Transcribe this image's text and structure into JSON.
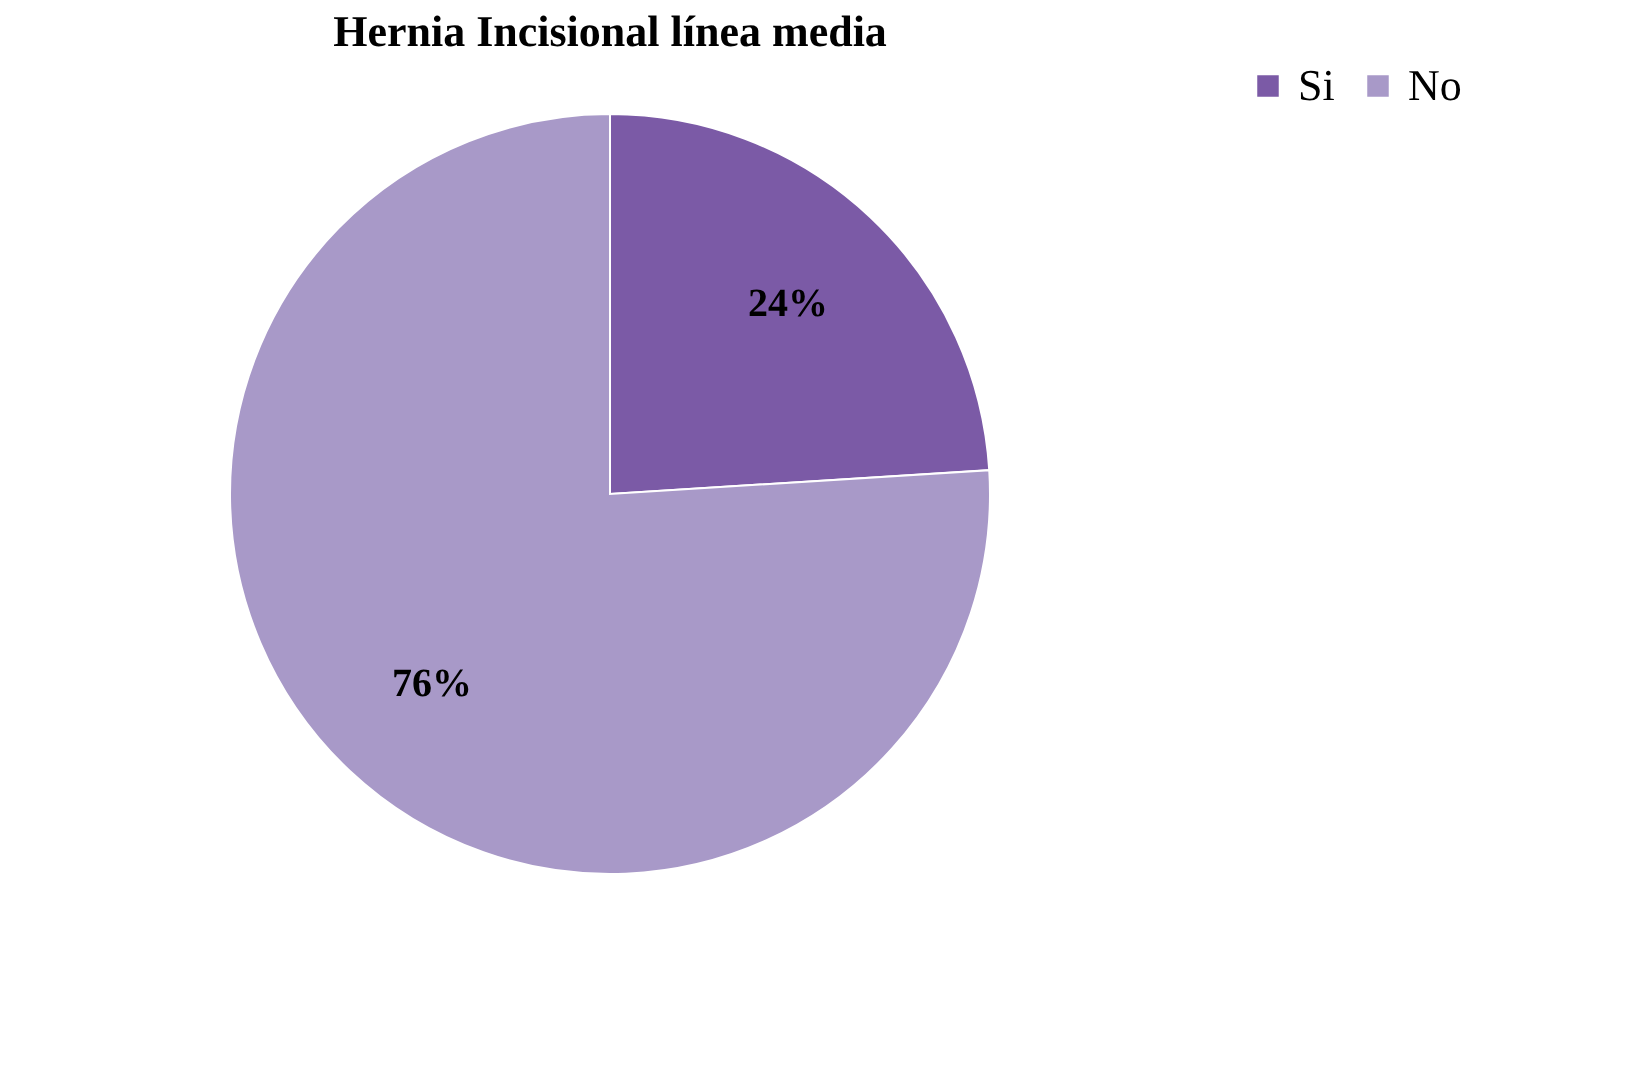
{
  "chart_data": {
    "type": "pie",
    "title": "Hernia Incisional línea media",
    "categories": [
      "Si",
      "No"
    ],
    "values": [
      24,
      76
    ],
    "colors": [
      "#7b5aa6",
      "#a899c8"
    ],
    "value_labels": [
      "24%",
      "76%"
    ],
    "legend": "right"
  }
}
